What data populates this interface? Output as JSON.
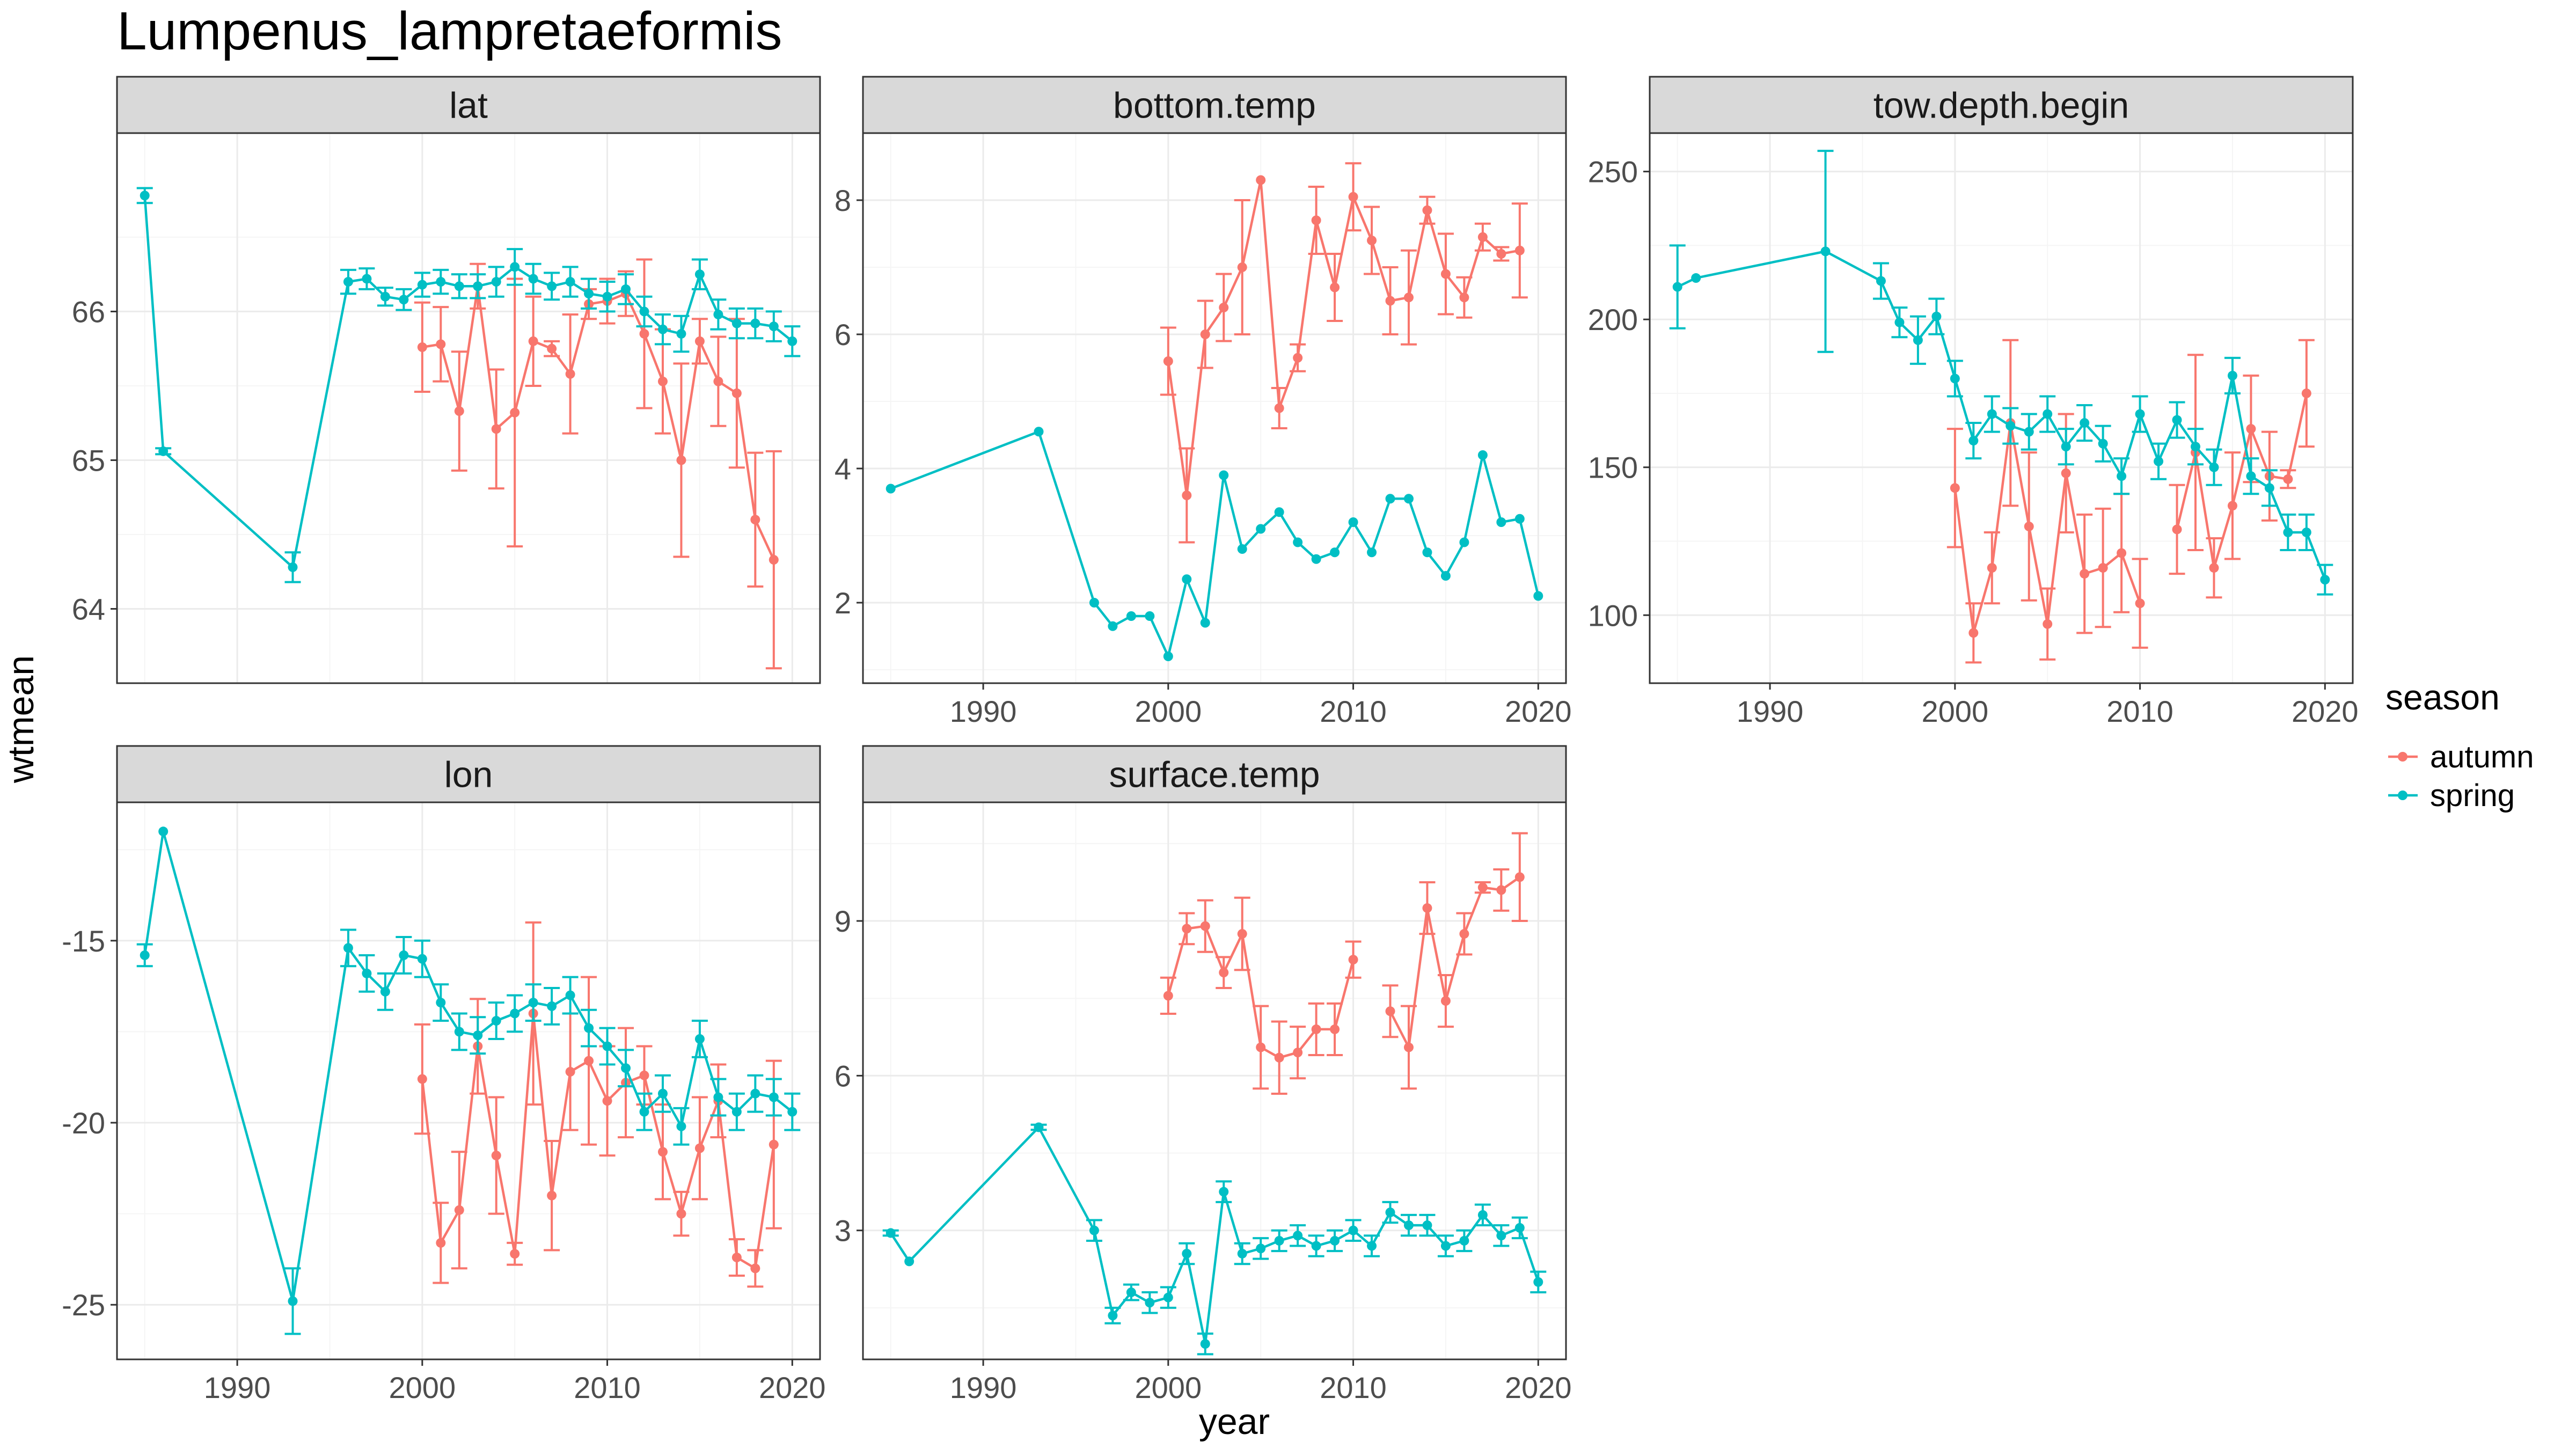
{
  "title": "Lumpenus_lampretaeformis",
  "xlabel": "year",
  "ylabel": "wtmean",
  "legend": {
    "title": "season",
    "entries": [
      {
        "name": "autumn",
        "color": "#F8766D"
      },
      {
        "name": "spring",
        "color": "#00BFC4"
      }
    ]
  },
  "colors": {
    "autumn": "#F8766D",
    "spring": "#00BFC4",
    "panel_border": "#333333",
    "strip_fill": "#d9d9d9",
    "grid_major": "#ebebeb",
    "grid_minor": "#f5f5f5"
  },
  "chart_data": [
    {
      "type": "line",
      "title": "lat",
      "xlim": [
        1983.5,
        2021.5
      ],
      "ylim": [
        63.5,
        67.2
      ],
      "xticks": [
        1990,
        2000,
        2010,
        2020
      ],
      "yticks": [
        64,
        65,
        66
      ],
      "grid": true,
      "series": [
        {
          "name": "spring",
          "x": [
            1985,
            1986,
            1993,
            1996,
            1997,
            1998,
            1999,
            2000,
            2001,
            2002,
            2003,
            2004,
            2005,
            2006,
            2007,
            2008,
            2009,
            2010,
            2011,
            2012,
            2013,
            2014,
            2015,
            2016,
            2017,
            2018,
            2019,
            2020
          ],
          "y": [
            66.78,
            65.06,
            64.28,
            66.2,
            66.22,
            66.1,
            66.08,
            66.18,
            66.2,
            66.17,
            66.17,
            66.2,
            66.3,
            66.22,
            66.17,
            66.2,
            66.12,
            66.1,
            66.15,
            66.0,
            65.88,
            65.85,
            66.25,
            65.98,
            65.92,
            65.92,
            65.9,
            65.8
          ],
          "err": [
            0.05,
            0.02,
            0.1,
            0.08,
            0.07,
            0.06,
            0.07,
            0.08,
            0.08,
            0.08,
            0.08,
            0.1,
            0.12,
            0.1,
            0.09,
            0.1,
            0.1,
            0.1,
            0.1,
            0.1,
            0.1,
            0.12,
            0.1,
            0.1,
            0.1,
            0.1,
            0.1,
            0.1
          ]
        },
        {
          "name": "autumn",
          "x": [
            2000,
            2001,
            2002,
            2003,
            2004,
            2005,
            2006,
            2007,
            2008,
            2009,
            2010,
            2011,
            2012,
            2013,
            2014,
            2015,
            2016,
            2017,
            2018,
            2019
          ],
          "y": [
            65.76,
            65.78,
            65.33,
            66.17,
            65.21,
            65.32,
            65.8,
            65.75,
            65.58,
            66.05,
            66.07,
            66.12,
            65.85,
            65.53,
            65.0,
            65.8,
            65.53,
            65.45,
            64.6,
            64.33
          ],
          "err": [
            0.3,
            0.25,
            0.4,
            0.15,
            0.4,
            0.9,
            0.3,
            0.05,
            0.4,
            0.1,
            0.15,
            0.15,
            0.5,
            0.35,
            0.65,
            0.15,
            0.3,
            0.5,
            0.45,
            0.73
          ]
        }
      ]
    },
    {
      "type": "line",
      "title": "bottom.temp",
      "xlim": [
        1983.5,
        2021.5
      ],
      "ylim": [
        0.8,
        9.0
      ],
      "xticks": [
        1990,
        2000,
        2010,
        2020
      ],
      "yticks": [
        2,
        4,
        6,
        8
      ],
      "grid": true,
      "series": [
        {
          "name": "spring",
          "x": [
            1985,
            1993,
            1996,
            1997,
            1998,
            1999,
            2000,
            2001,
            2002,
            2003,
            2004,
            2005,
            2006,
            2007,
            2008,
            2009,
            2010,
            2011,
            2012,
            2013,
            2014,
            2015,
            2016,
            2017,
            2018,
            2019,
            2020
          ],
          "y": [
            3.7,
            4.55,
            2.0,
            1.65,
            1.8,
            1.8,
            1.2,
            2.35,
            1.7,
            3.9,
            2.8,
            3.1,
            3.35,
            2.9,
            2.65,
            2.75,
            3.2,
            2.75,
            3.55,
            3.55,
            2.75,
            2.4,
            2.9,
            4.2,
            3.2,
            3.25,
            2.1
          ]
        },
        {
          "name": "autumn",
          "x": [
            2000,
            2001,
            2002,
            2003,
            2004,
            2005,
            2006,
            2007,
            2008,
            2009,
            2010,
            2011,
            2012,
            2013,
            2014,
            2015,
            2016,
            2017,
            2018,
            2019
          ],
          "y": [
            5.6,
            3.6,
            6.0,
            6.4,
            7.0,
            8.3,
            4.9,
            5.65,
            7.7,
            6.7,
            8.05,
            7.4,
            6.5,
            6.55,
            7.85,
            6.9,
            6.55,
            7.45,
            7.2,
            7.25
          ],
          "err": [
            0.5,
            0.7,
            0.5,
            0.5,
            1.0,
            0.0,
            0.3,
            0.2,
            0.5,
            0.5,
            0.5,
            0.5,
            0.5,
            0.7,
            0.2,
            0.6,
            0.3,
            0.2,
            0.1,
            0.7
          ]
        }
      ]
    },
    {
      "type": "line",
      "title": "tow.depth.begin",
      "xlim": [
        1983.5,
        2021.5
      ],
      "ylim": [
        77,
        263
      ],
      "xticks": [
        1990,
        2000,
        2010,
        2020
      ],
      "yticks": [
        100,
        150,
        200,
        250
      ],
      "grid": true,
      "series": [
        {
          "name": "spring",
          "x": [
            1985,
            1986,
            1993,
            1996,
            1997,
            1998,
            1999,
            2000,
            2001,
            2002,
            2003,
            2004,
            2005,
            2006,
            2007,
            2008,
            2009,
            2010,
            2011,
            2012,
            2013,
            2014,
            2015,
            2016,
            2017,
            2018,
            2019,
            2020
          ],
          "y": [
            211,
            214,
            223,
            213,
            199,
            193,
            201,
            180,
            159,
            168,
            164,
            162,
            168,
            157,
            165,
            158,
            147,
            168,
            152,
            166,
            157,
            150,
            181,
            147,
            143,
            128,
            128,
            112
          ],
          "err": [
            14,
            0,
            34,
            6,
            5,
            8,
            6,
            6,
            6,
            6,
            6,
            6,
            6,
            6,
            6,
            6,
            6,
            6,
            6,
            6,
            6,
            6,
            6,
            6,
            6,
            6,
            6,
            5
          ]
        },
        {
          "name": "autumn",
          "x": [
            2000,
            2001,
            2002,
            2003,
            2004,
            2005,
            2006,
            2007,
            2008,
            2009,
            2010,
            2011,
            2012,
            2013,
            2014,
            2015,
            2016,
            2017,
            2018,
            2019
          ],
          "y": [
            143,
            94,
            116,
            165,
            130,
            97,
            148,
            114,
            116,
            121,
            104,
            null,
            129,
            155,
            116,
            137,
            163,
            147,
            146,
            175
          ],
          "err": [
            20,
            10,
            12,
            28,
            25,
            12,
            20,
            20,
            20,
            20,
            15,
            null,
            15,
            33,
            10,
            18,
            18,
            15,
            3,
            18
          ]
        }
      ]
    },
    {
      "type": "line",
      "title": "lon",
      "xlim": [
        1983.5,
        2021.5
      ],
      "ylim": [
        -26.5,
        -11.2
      ],
      "xticks": [
        1990,
        2000,
        2010,
        2020
      ],
      "yticks": [
        -25,
        -20,
        -15
      ],
      "grid": true,
      "series": [
        {
          "name": "spring",
          "x": [
            1985,
            1986,
            1993,
            1996,
            1997,
            1998,
            1999,
            2000,
            2001,
            2002,
            2003,
            2004,
            2005,
            2006,
            2007,
            2008,
            2009,
            2010,
            2011,
            2012,
            2013,
            2014,
            2015,
            2016,
            2017,
            2018,
            2019,
            2020
          ],
          "y": [
            -15.4,
            -12.0,
            -24.9,
            -15.2,
            -15.9,
            -16.4,
            -15.4,
            -15.5,
            -16.7,
            -17.5,
            -17.6,
            -17.2,
            -17.0,
            -16.7,
            -16.8,
            -16.5,
            -17.4,
            -17.9,
            -18.5,
            -19.7,
            -19.2,
            -20.1,
            -17.7,
            -19.3,
            -19.7,
            -19.2,
            -19.3,
            -19.7
          ],
          "err": [
            0.3,
            0.0,
            0.9,
            0.5,
            0.5,
            0.5,
            0.5,
            0.5,
            0.5,
            0.5,
            0.5,
            0.5,
            0.5,
            0.5,
            0.5,
            0.5,
            0.5,
            0.5,
            0.5,
            0.5,
            0.5,
            0.5,
            0.5,
            0.5,
            0.5,
            0.5,
            0.5,
            0.5
          ]
        },
        {
          "name": "autumn",
          "x": [
            2000,
            2001,
            2002,
            2003,
            2004,
            2005,
            2006,
            2007,
            2008,
            2009,
            2010,
            2011,
            2012,
            2013,
            2014,
            2015,
            2016,
            2017,
            2018,
            2019
          ],
          "y": [
            -18.8,
            -23.3,
            -22.4,
            -17.9,
            -20.9,
            -23.6,
            -17.0,
            -22.0,
            -18.6,
            -18.3,
            -19.4,
            -18.9,
            -18.7,
            -20.8,
            -22.5,
            -20.7,
            -19.4,
            -23.7,
            -24.0,
            -20.6
          ],
          "err": [
            1.5,
            1.1,
            1.6,
            1.3,
            1.6,
            0.3,
            2.5,
            1.5,
            1.6,
            2.3,
            1.5,
            1.5,
            0.8,
            1.3,
            0.6,
            1.4,
            1.0,
            0.5,
            0.5,
            2.3
          ]
        }
      ]
    },
    {
      "type": "line",
      "title": "surface.temp",
      "xlim": [
        1983.5,
        2021.5
      ],
      "ylim": [
        0.5,
        11.3
      ],
      "xticks": [
        1990,
        2000,
        2010,
        2020
      ],
      "yticks": [
        3,
        6,
        9
      ],
      "grid": true,
      "series": [
        {
          "name": "spring",
          "x": [
            1985,
            1986,
            1993,
            1996,
            1997,
            1998,
            1999,
            2000,
            2001,
            2002,
            2003,
            2004,
            2005,
            2006,
            2007,
            2008,
            2009,
            2010,
            2011,
            2012,
            2013,
            2014,
            2015,
            2016,
            2017,
            2018,
            2019,
            2020
          ],
          "y": [
            2.95,
            2.4,
            5.0,
            3.0,
            1.35,
            1.8,
            1.6,
            1.7,
            2.55,
            0.8,
            3.75,
            2.55,
            2.65,
            2.8,
            2.9,
            2.7,
            2.8,
            3.0,
            2.7,
            3.35,
            3.1,
            3.1,
            2.7,
            2.8,
            3.3,
            2.9,
            3.05,
            2.0
          ],
          "err": [
            0.05,
            0.0,
            0.05,
            0.2,
            0.15,
            0.15,
            0.2,
            0.2,
            0.2,
            0.2,
            0.2,
            0.2,
            0.2,
            0.2,
            0.2,
            0.2,
            0.2,
            0.2,
            0.2,
            0.2,
            0.2,
            0.2,
            0.2,
            0.2,
            0.2,
            0.2,
            0.2,
            0.2
          ]
        },
        {
          "name": "autumn",
          "x": [
            2000,
            2001,
            2002,
            2003,
            2004,
            2005,
            2006,
            2007,
            2008,
            2009,
            2010,
            2011,
            2012,
            2013,
            2014,
            2015,
            2016,
            2017,
            2018,
            2019
          ],
          "y": [
            7.55,
            8.85,
            8.9,
            8.0,
            8.75,
            6.55,
            6.35,
            6.45,
            6.9,
            6.9,
            8.25,
            null,
            7.25,
            6.55,
            9.25,
            7.45,
            8.75,
            9.65,
            9.6,
            9.85
          ],
          "err": [
            0.35,
            0.3,
            0.5,
            0.3,
            0.7,
            0.8,
            0.7,
            0.5,
            0.5,
            0.5,
            0.35,
            null,
            0.5,
            0.8,
            0.5,
            0.5,
            0.4,
            0.1,
            0.4,
            0.85
          ]
        }
      ]
    }
  ]
}
